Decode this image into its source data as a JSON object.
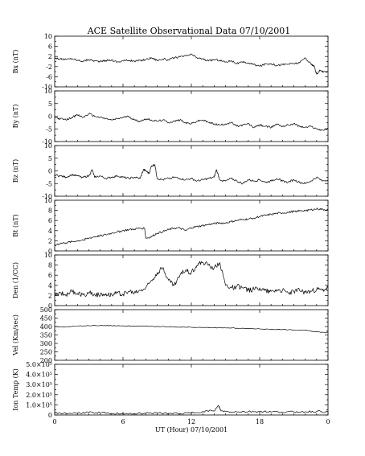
{
  "chart_data": {
    "type": "line",
    "title": "ACE Satellite Observational Data   07/10/2001",
    "xlabel": "UT (Hour)  07/10/2001",
    "x_ticks": [
      "0",
      "6",
      "12",
      "18",
      "0"
    ],
    "x_tick_values": [
      0,
      6,
      12,
      18,
      24
    ],
    "xlim": [
      0,
      24
    ],
    "panels": [
      {
        "ylabel": "Bx (nT)",
        "ylim": [
          -10,
          10
        ],
        "yticks": [
          "10",
          "6",
          "2",
          "-2",
          "-6",
          "-10"
        ],
        "ytick_values": [
          10,
          6,
          2,
          -2,
          -6,
          -10
        ],
        "x": [
          0,
          0.5,
          1,
          1.5,
          2,
          2.5,
          3,
          3.5,
          4,
          4.5,
          5,
          5.5,
          6,
          6.5,
          7,
          7.5,
          8,
          8.5,
          9,
          9.5,
          10,
          10.5,
          11,
          11.5,
          12,
          12.5,
          13,
          13.5,
          14,
          14.5,
          15,
          15.5,
          16,
          16.5,
          17,
          17.5,
          18,
          18.5,
          19,
          19.5,
          20,
          20.5,
          21,
          21.5,
          22,
          22.5,
          22.8,
          23,
          23.3,
          23.6,
          24
        ],
        "y": [
          1.5,
          1.0,
          0.8,
          1.2,
          0.5,
          0.2,
          0.8,
          0.3,
          0.0,
          0.4,
          0.6,
          -0.2,
          0.3,
          0.5,
          0.1,
          0.4,
          0.8,
          1.5,
          0.5,
          1.0,
          0.6,
          1.5,
          1.8,
          2.2,
          2.8,
          1.5,
          1.0,
          0.2,
          0.8,
          0.5,
          -0.2,
          0.4,
          -0.8,
          -0.3,
          -0.6,
          -1.2,
          -1.8,
          -1.0,
          -0.8,
          -1.5,
          -1.2,
          -1.0,
          -0.8,
          -0.5,
          1.5,
          -1.0,
          -2.0,
          -5.0,
          -3.5,
          -4.2,
          -3.8
        ]
      },
      {
        "ylabel": "By (nT)",
        "ylim": [
          -10,
          10
        ],
        "yticks": [
          "10",
          "5",
          "0",
          "-5",
          "-10"
        ],
        "ytick_values": [
          10,
          5,
          0,
          -5,
          -10
        ],
        "x": [
          0,
          0.5,
          1,
          1.5,
          2,
          2.5,
          3,
          3.5,
          4,
          4.5,
          5,
          5.5,
          6,
          6.5,
          7,
          7.5,
          8,
          8.5,
          9,
          9.5,
          10,
          10.5,
          11,
          11.5,
          12,
          12.5,
          13,
          13.5,
          14,
          14.5,
          15,
          15.5,
          16,
          16.5,
          17,
          17.5,
          18,
          18.5,
          19,
          19.5,
          20,
          20.5,
          21,
          21.5,
          22,
          22.5,
          23,
          23.5,
          24
        ],
        "y": [
          -0.5,
          -1.0,
          -1.5,
          -0.5,
          0.5,
          -0.5,
          1.0,
          0.0,
          -0.5,
          -1.0,
          -1.5,
          -1.0,
          -0.5,
          0.0,
          -1.5,
          -2.0,
          -1.0,
          -1.5,
          -2.0,
          -1.5,
          -2.5,
          -2.0,
          -1.5,
          -2.5,
          -3.0,
          -2.0,
          -1.5,
          -2.5,
          -3.0,
          -3.5,
          -3.0,
          -2.5,
          -4.0,
          -3.5,
          -3.0,
          -4.5,
          -3.5,
          -4.0,
          -4.5,
          -3.0,
          -4.0,
          -3.5,
          -3.0,
          -4.0,
          -4.5,
          -4.0,
          -5.0,
          -5.5,
          -5.0
        ]
      },
      {
        "ylabel": "Bz (nT)",
        "ylim": [
          -10,
          10
        ],
        "yticks": [
          "10",
          "5",
          "0",
          "-5",
          "-10"
        ],
        "ytick_values": [
          10,
          5,
          0,
          -5,
          -10
        ],
        "x": [
          0,
          0.5,
          1,
          1.5,
          2,
          2.5,
          3,
          3.3,
          3.5,
          4,
          4.5,
          5,
          5.5,
          6,
          6.5,
          7,
          7.5,
          7.8,
          8,
          8.3,
          8.5,
          8.8,
          9,
          9.5,
          10,
          10.5,
          11,
          11.5,
          12,
          12.5,
          13,
          13.5,
          14,
          14.2,
          14.5,
          15,
          15.5,
          16,
          16.5,
          17,
          17.5,
          18,
          18.5,
          19,
          19.5,
          20,
          20.5,
          21,
          21.5,
          22,
          22.5,
          23,
          23.5,
          24
        ],
        "y": [
          -1.5,
          -2.0,
          -2.5,
          -1.5,
          -2.0,
          -2.5,
          -2.0,
          0.5,
          -2.5,
          -2.0,
          -3.0,
          -2.5,
          -2.0,
          -2.5,
          -3.0,
          -2.5,
          -3.0,
          0.5,
          0.0,
          -1.0,
          2.0,
          2.5,
          -3.0,
          -3.5,
          -3.0,
          -2.5,
          -3.0,
          -3.5,
          -3.0,
          -4.0,
          -3.5,
          -3.0,
          -2.5,
          0.5,
          -3.5,
          -4.0,
          -3.0,
          -4.0,
          -5.0,
          -3.5,
          -4.0,
          -3.5,
          -4.5,
          -4.0,
          -3.0,
          -4.0,
          -4.5,
          -3.5,
          -4.5,
          -5.0,
          -4.0,
          -2.5,
          -4.0,
          -3.5
        ]
      },
      {
        "ylabel": "Bt (nT)",
        "ylim": [
          0,
          10
        ],
        "yticks": [
          "10",
          "8",
          "6",
          "4",
          "2",
          "0"
        ],
        "ytick_values": [
          10,
          8,
          6,
          4,
          2,
          0
        ],
        "x": [
          0,
          0.5,
          1,
          1.5,
          2,
          2.5,
          3,
          3.5,
          4,
          4.5,
          5,
          5.5,
          6,
          6.5,
          7,
          7.5,
          7.9,
          8.0,
          8.5,
          9,
          9.5,
          10,
          10.5,
          11,
          11.5,
          12,
          12.5,
          13,
          13.5,
          14,
          14.5,
          15,
          15.5,
          16,
          16.5,
          17,
          17.5,
          18,
          18.5,
          19,
          19.5,
          20,
          20.5,
          21,
          21.5,
          22,
          22.5,
          23,
          23.5,
          24
        ],
        "y": [
          1.2,
          1.5,
          1.6,
          1.8,
          2.0,
          2.2,
          2.5,
          2.8,
          3.0,
          3.2,
          3.5,
          3.8,
          4.0,
          4.2,
          4.3,
          4.5,
          4.5,
          2.5,
          2.8,
          3.5,
          3.8,
          4.2,
          4.5,
          4.5,
          4.0,
          4.6,
          4.8,
          5.0,
          5.2,
          5.4,
          5.5,
          5.5,
          5.8,
          6.0,
          6.2,
          6.3,
          6.5,
          6.8,
          7.0,
          7.2,
          7.4,
          7.5,
          7.6,
          7.8,
          7.9,
          8.0,
          8.1,
          8.3,
          8.2,
          8.1
        ]
      },
      {
        "ylabel": "Den (1/CC)",
        "ylim": [
          0,
          10
        ],
        "yticks": [
          "10",
          "8",
          "6",
          "4",
          "2",
          "0"
        ],
        "ytick_values": [
          10,
          8,
          6,
          4,
          2,
          0
        ],
        "x": [
          0,
          0.5,
          1,
          1.5,
          2,
          2.5,
          3,
          3.5,
          4,
          4.5,
          5,
          5.5,
          6,
          6.5,
          7,
          7.5,
          8,
          8.5,
          9,
          9.5,
          10,
          10.5,
          11,
          11.5,
          12,
          12.5,
          13,
          13.5,
          14,
          14.5,
          15,
          15.5,
          16,
          16.5,
          17,
          17.5,
          18,
          18.5,
          19,
          19.5,
          20,
          20.5,
          21,
          21.5,
          22,
          22.5,
          23,
          23.5,
          24
        ],
        "y": [
          2.0,
          2.5,
          2.2,
          2.8,
          2.4,
          2.1,
          2.6,
          2.3,
          2.0,
          2.4,
          2.2,
          2.5,
          2.3,
          2.8,
          2.5,
          3.0,
          3.5,
          5.0,
          6.5,
          7.5,
          5.0,
          4.0,
          6.0,
          7.0,
          6.5,
          8.0,
          8.5,
          8.0,
          7.5,
          8.5,
          4.0,
          3.5,
          3.8,
          3.5,
          3.0,
          3.2,
          3.5,
          3.0,
          2.8,
          3.2,
          3.0,
          2.5,
          2.8,
          3.0,
          2.6,
          2.8,
          3.2,
          3.0,
          3.5
        ]
      },
      {
        "ylabel": "Vel (Km/sec)",
        "ylim": [
          200,
          500
        ],
        "yticks": [
          "500",
          "450",
          "400",
          "350",
          "300",
          "250",
          "200"
        ],
        "ytick_values": [
          500,
          450,
          400,
          350,
          300,
          250,
          200
        ],
        "x": [
          0,
          1,
          2,
          3,
          4,
          5,
          6,
          7,
          8,
          9,
          10,
          11,
          12,
          13,
          14,
          15,
          16,
          17,
          18,
          19,
          20,
          21,
          22,
          23,
          24
        ],
        "y": [
          400,
          398,
          402,
          405,
          406,
          405,
          404,
          403,
          402,
          400,
          398,
          396,
          395,
          394,
          393,
          392,
          390,
          388,
          386,
          384,
          382,
          380,
          378,
          368,
          366
        ]
      },
      {
        "ylabel": "Ion Temp (K)",
        "ylim": [
          0,
          500000
        ],
        "yticks": [
          "5.0×10⁵",
          "4.0×10⁵",
          "3.0×10⁵",
          "2.0×10⁵",
          "1.0×10⁵",
          "0"
        ],
        "ytick_values": [
          500000,
          400000,
          300000,
          200000,
          100000,
          0
        ],
        "x": [
          0,
          1,
          2,
          3,
          4,
          5,
          6,
          7,
          8,
          9,
          10,
          11,
          12,
          13,
          14,
          14.4,
          14.6,
          15,
          16,
          17,
          18,
          19,
          20,
          21,
          22,
          23,
          24
        ],
        "y": [
          20000,
          15000,
          18000,
          25000,
          22000,
          15000,
          12000,
          14000,
          16000,
          20000,
          15000,
          14000,
          18000,
          35000,
          40000,
          90000,
          40000,
          35000,
          30000,
          32000,
          34000,
          30000,
          28000,
          30000,
          32000,
          34000,
          30000
        ]
      }
    ]
  }
}
